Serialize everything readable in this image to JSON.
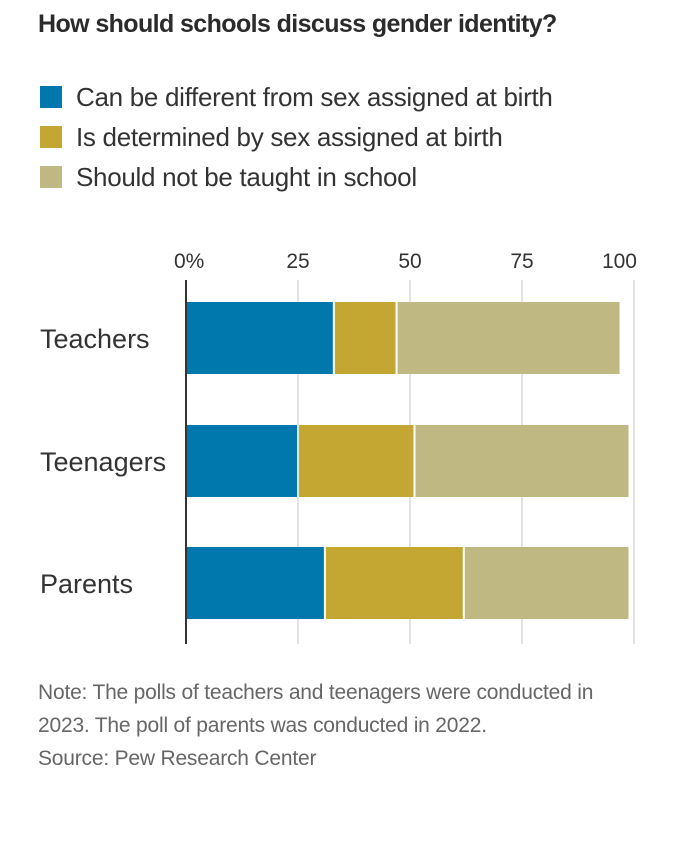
{
  "chart_data": {
    "type": "bar",
    "orientation": "horizontal",
    "stacked": true,
    "title": "How should schools discuss gender identity?",
    "xlabel": "",
    "ylabel": "",
    "xlim": [
      0,
      100
    ],
    "x_ticks": [
      0,
      25,
      50,
      75,
      100
    ],
    "x_tick_labels": [
      "0%",
      "25",
      "50",
      "75",
      "100"
    ],
    "grid": true,
    "legend_position": "top",
    "categories": [
      "Teachers",
      "Teenagers",
      "Parents"
    ],
    "series": [
      {
        "name": "Can be different from sex assigned at birth",
        "color": "#0078AD",
        "values": [
          33,
          25,
          31
        ]
      },
      {
        "name": "Is determined by sex assigned at birth",
        "color": "#C4A733",
        "values": [
          14,
          26,
          31
        ]
      },
      {
        "name": "Should not be taught in school",
        "color": "#BFB883",
        "values": [
          50,
          48,
          37
        ]
      }
    ],
    "note": "Note: The polls of teachers and teenagers were conducted in 2023. The poll of parents was conducted in 2022.",
    "source": "Source: Pew Research Center"
  }
}
